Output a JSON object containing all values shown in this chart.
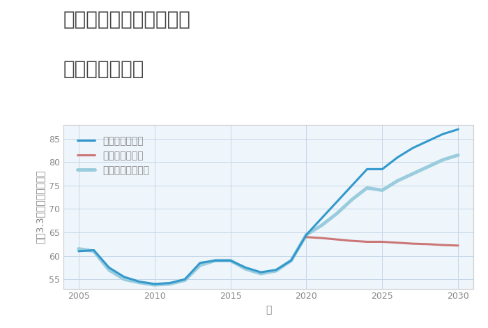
{
  "title_line1": "神奈川県伊勢原市白根の",
  "title_line2": "土地の価格推移",
  "xlabel": "年",
  "ylabel": "平（3.3㎡）単価（万円）",
  "xlim": [
    2004,
    2031
  ],
  "ylim": [
    53,
    88
  ],
  "yticks": [
    55,
    60,
    65,
    70,
    75,
    80,
    85
  ],
  "xticks": [
    2005,
    2010,
    2015,
    2020,
    2025,
    2030
  ],
  "background_color": "#eef5fb",
  "grid_color": "#c5d8e8",
  "good_scenario": {
    "label": "グッドシナリオ",
    "color": "#3399cc",
    "linewidth": 2.2,
    "x": [
      2005,
      2006,
      2007,
      2008,
      2009,
      2010,
      2011,
      2012,
      2013,
      2014,
      2015,
      2016,
      2017,
      2018,
      2019,
      2020,
      2021,
      2022,
      2023,
      2024,
      2025,
      2026,
      2027,
      2028,
      2029,
      2030
    ],
    "y": [
      61.0,
      61.2,
      57.5,
      55.5,
      54.5,
      54.0,
      54.2,
      55.0,
      58.5,
      59.0,
      59.0,
      57.5,
      56.5,
      57.0,
      59.0,
      64.5,
      68.0,
      71.5,
      75.0,
      78.5,
      78.5,
      81.0,
      83.0,
      84.5,
      86.0,
      87.0
    ]
  },
  "bad_scenario": {
    "label": "バッドシナリオ",
    "color": "#cc7777",
    "linewidth": 2.2,
    "x": [
      2020,
      2021,
      2022,
      2023,
      2024,
      2025,
      2026,
      2027,
      2028,
      2029,
      2030
    ],
    "y": [
      64.0,
      63.8,
      63.5,
      63.2,
      63.0,
      63.0,
      62.8,
      62.6,
      62.5,
      62.3,
      62.2
    ]
  },
  "normal_scenario": {
    "label": "ノーマルシナリオ",
    "color": "#99ccdd",
    "linewidth": 3.5,
    "x": [
      2005,
      2006,
      2007,
      2008,
      2009,
      2010,
      2011,
      2012,
      2013,
      2014,
      2015,
      2016,
      2017,
      2018,
      2019,
      2020,
      2021,
      2022,
      2023,
      2024,
      2025,
      2026,
      2027,
      2028,
      2029,
      2030
    ],
    "y": [
      61.5,
      61.0,
      57.0,
      55.0,
      54.3,
      53.8,
      54.0,
      54.8,
      58.0,
      59.0,
      59.0,
      57.2,
      56.2,
      56.8,
      59.0,
      64.5,
      66.5,
      69.0,
      72.0,
      74.5,
      74.0,
      76.0,
      77.5,
      79.0,
      80.5,
      81.5
    ]
  },
  "legend_fontsize": 10,
  "title_fontsize": 20,
  "axis_fontsize": 10,
  "tick_color": "#888888",
  "spine_color": "#cccccc",
  "title_color": "#444444"
}
